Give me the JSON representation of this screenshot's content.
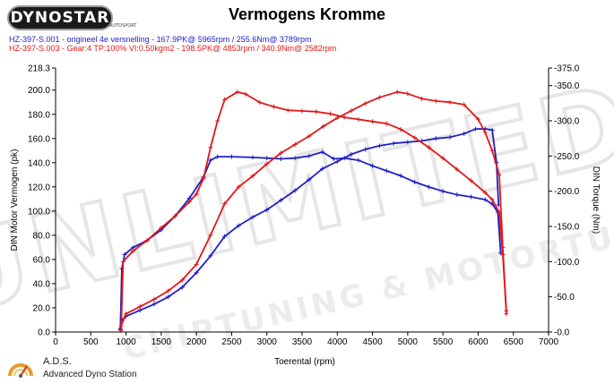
{
  "header": {
    "logo_text": "DYNOSTAR",
    "logo_sub": "AUTOSPORT",
    "title": "Vermogens Kromme"
  },
  "runs": [
    {
      "label": "HZ-397-S.001 - origineel 4e versnelling  - 167.9PK@ 5965rpm / 255.6Nm@ 3789rpm",
      "color": "#2020c8"
    },
    {
      "label": "HZ-397-S.003 - Gear:4 TP:100% VI:0.50kgm2   - 198.5PK@ 4853rpm / 340.9Nm@ 2582rpm",
      "color": "#e01818"
    }
  ],
  "footer": {
    "name": "A.D.S.",
    "description": "Advanced Dyno Station"
  },
  "watermark": {
    "line1": "UNLIMITED",
    "line2": "CHIPTUNING & MOTORTUNING"
  },
  "chart_data": {
    "type": "line",
    "title": "Vermogens Kromme",
    "xlabel": "Toerental (rpm)",
    "ylabel": "DIN Motor Vermogen (pk)",
    "y2label": "DIN Torque (Nm)",
    "xlim": [
      0,
      7000
    ],
    "ylim": [
      0,
      218.3
    ],
    "y2lim": [
      0,
      375
    ],
    "x_ticks": [
      0,
      500,
      1000,
      1500,
      2000,
      2500,
      3000,
      3500,
      4000,
      4500,
      5000,
      5500,
      6000,
      6500,
      7000
    ],
    "y_ticks": [
      0.0,
      20.0,
      40.0,
      60.0,
      80.0,
      100.0,
      120.0,
      140.0,
      160.0,
      180.0,
      200.0,
      218.3
    ],
    "y2_ticks": [
      0.0,
      50.0,
      100.0,
      150.0,
      200.0,
      250.0,
      300.0,
      350.0,
      375.0
    ],
    "grid": false,
    "series": [
      {
        "name": "HZ-397-S.001 vermogen",
        "axis": "left",
        "color": "#2020c8",
        "x": [
          920,
          940,
          1000,
          1200,
          1400,
          1600,
          1800,
          2000,
          2200,
          2400,
          2600,
          2800,
          3000,
          3200,
          3400,
          3600,
          3789,
          4000,
          4200,
          4400,
          4600,
          4800,
          5000,
          5200,
          5400,
          5600,
          5800,
          5965,
          6100,
          6200,
          6260,
          6290
        ],
        "y": [
          2,
          10,
          13,
          18,
          23,
          29,
          37,
          49,
          63,
          79,
          88,
          95,
          101,
          109,
          117,
          126,
          135,
          141,
          147,
          151,
          154,
          156,
          157,
          158,
          160,
          161,
          164,
          167.9,
          168,
          167,
          140,
          105
        ]
      },
      {
        "name": "HZ-397-S.001 torque",
        "axis": "right",
        "color": "#2020c8",
        "x": [
          920,
          940,
          980,
          1100,
          1300,
          1500,
          1700,
          1900,
          2100,
          2200,
          2300,
          2500,
          2800,
          3000,
          3200,
          3400,
          3600,
          3789,
          3950,
          4100,
          4300,
          4500,
          4700,
          4900,
          5100,
          5300,
          5500,
          5700,
          5900,
          6100,
          6200,
          6280,
          6320
        ],
        "y": [
          5,
          90,
          110,
          120,
          130,
          145,
          165,
          190,
          220,
          244,
          249,
          249,
          248,
          247,
          246,
          247,
          250,
          255.6,
          246,
          247,
          244,
          236,
          229,
          222,
          213,
          206,
          200,
          195,
          192,
          188,
          182,
          170,
          112
        ]
      },
      {
        "name": "HZ-397-S.003 vermogen",
        "axis": "left",
        "color": "#e01818",
        "x": [
          930,
          1000,
          1200,
          1400,
          1600,
          1800,
          2000,
          2200,
          2400,
          2600,
          2800,
          3000,
          3200,
          3400,
          3600,
          3800,
          4000,
          4200,
          4400,
          4600,
          4853,
          5000,
          5200,
          5400,
          5600,
          5800,
          6000,
          6100,
          6200,
          6300,
          6350,
          6400
        ],
        "y": [
          5,
          15,
          21,
          27,
          34,
          43,
          56,
          80,
          106,
          120,
          129,
          139,
          148,
          155,
          162,
          170,
          177,
          183,
          189,
          194,
          198.5,
          197,
          193,
          191,
          190,
          188,
          176,
          165,
          150,
          130,
          70,
          15
        ]
      },
      {
        "name": "HZ-397-S.003 torque",
        "axis": "right",
        "color": "#e01818",
        "x": [
          930,
          960,
          1100,
          1300,
          1500,
          1700,
          1900,
          2000,
          2100,
          2200,
          2300,
          2400,
          2582,
          2700,
          2900,
          3100,
          3300,
          3500,
          3700,
          3900,
          4100,
          4300,
          4500,
          4700,
          4900,
          5100,
          5300,
          5500,
          5700,
          5900,
          6100,
          6200,
          6300,
          6350,
          6400
        ],
        "y": [
          2,
          100,
          115,
          130,
          148,
          165,
          185,
          196,
          218,
          262,
          300,
          330,
          340.9,
          338,
          326,
          320,
          315,
          314,
          313,
          310,
          305,
          302,
          299,
          296,
          288,
          276,
          262,
          247,
          231,
          215,
          198,
          188,
          170,
          110,
          30
        ]
      }
    ]
  }
}
